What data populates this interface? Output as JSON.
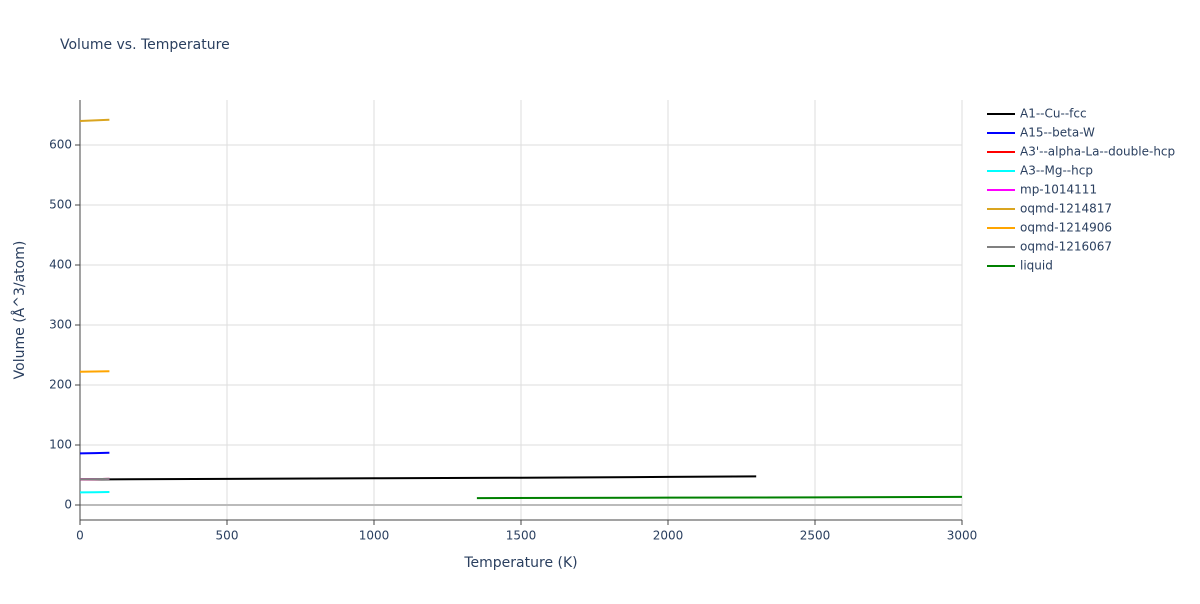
{
  "chart_data": {
    "type": "line",
    "title": "Volume vs. Temperature",
    "x_label": "Temperature (K)",
    "y_label": "Volume (Å^3/atom)",
    "xlim": [
      0,
      3000
    ],
    "ylim": [
      -25,
      675
    ],
    "xticks": [
      0,
      500,
      1000,
      1500,
      2000,
      2500,
      3000
    ],
    "yticks": [
      0,
      100,
      200,
      300,
      400,
      500,
      600
    ],
    "grid": true,
    "legend": "right",
    "series": [
      {
        "name": "A1--Cu--fcc",
        "color": "#000000",
        "x": [
          0,
          500,
          1000,
          1500,
          2000,
          2300
        ],
        "values": [
          42.5,
          43.5,
          44.5,
          45.5,
          46.8,
          47.8
        ]
      },
      {
        "name": "A15--beta-W",
        "color": "#0000ff",
        "x": [
          0,
          50,
          100
        ],
        "values": [
          86,
          86.5,
          87
        ]
      },
      {
        "name": "A3'--alpha-La--double-hcp",
        "color": "#ff0000",
        "x": [
          0,
          50,
          100
        ],
        "values": [
          43,
          43.2,
          43.5
        ]
      },
      {
        "name": "A3--Mg--hcp",
        "color": "#00ffff",
        "x": [
          0,
          50,
          100
        ],
        "values": [
          21,
          21.3,
          21.7
        ]
      },
      {
        "name": "mp-1014111",
        "color": "#ff00ff",
        "x": [
          0,
          50,
          100
        ],
        "values": [
          43,
          43.2,
          43.5
        ]
      },
      {
        "name": "oqmd-1214817",
        "color": "#daa520",
        "x": [
          0,
          50,
          100
        ],
        "values": [
          640,
          641,
          642
        ]
      },
      {
        "name": "oqmd-1214906",
        "color": "#ffa500",
        "x": [
          0,
          50,
          100
        ],
        "values": [
          222,
          222.5,
          223
        ]
      },
      {
        "name": "oqmd-1216067",
        "color": "#808080",
        "x": [
          0,
          50,
          100
        ],
        "values": [
          43,
          43.2,
          43.5
        ]
      },
      {
        "name": "liquid",
        "color": "#008000",
        "x": [
          1350,
          2000,
          2500,
          3000
        ],
        "values": [
          11.5,
          12.2,
          12.8,
          13.5
        ]
      }
    ]
  }
}
